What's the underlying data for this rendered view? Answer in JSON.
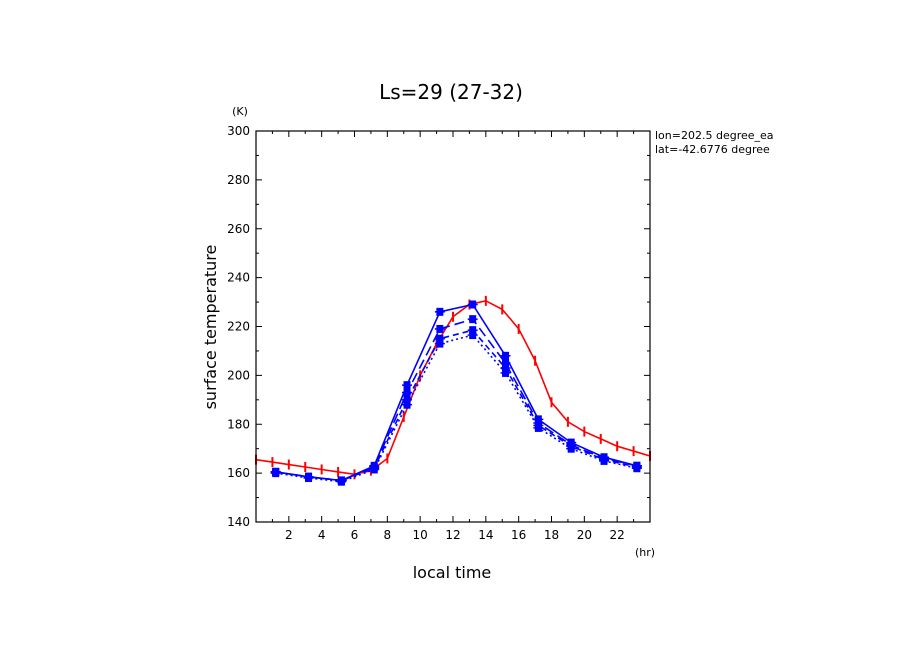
{
  "chart_data": {
    "type": "line",
    "title": "Ls=29 (27-32)",
    "xlabel": "local time",
    "ylabel": "surface temperature",
    "x_unit": "(hr)",
    "y_unit": "(K)",
    "xlim": [
      0,
      24
    ],
    "ylim": [
      140,
      300
    ],
    "x_ticks": [
      2,
      4,
      6,
      8,
      10,
      12,
      14,
      16,
      18,
      20,
      22
    ],
    "y_ticks": [
      140,
      160,
      180,
      200,
      220,
      240,
      260,
      280,
      300
    ],
    "grid": false,
    "annotations": [
      "lon=202.5 degree_ea",
      "lat=-42.6776 degree"
    ],
    "series": [
      {
        "color": "#ff0000",
        "line": "solid",
        "x": [
          0,
          1,
          2,
          3,
          4,
          5,
          6,
          7,
          8,
          9,
          10,
          11,
          12,
          13,
          14,
          15,
          16,
          17,
          18,
          19,
          20,
          21,
          22,
          23,
          24
        ],
        "y": [
          165.5,
          164.5,
          163.5,
          162.5,
          161.5,
          160.5,
          159.5,
          161,
          166,
          183,
          200,
          213,
          224,
          229,
          230.5,
          227,
          219,
          206,
          189,
          181,
          177,
          174,
          171,
          169,
          167
        ]
      },
      {
        "color": "#0000ff",
        "line": "solid",
        "x": [
          1.2,
          3.2,
          5.2,
          7.2,
          9.2,
          11.2,
          13.2,
          15.2,
          17.2,
          19.2,
          21.2,
          23.2
        ],
        "y": [
          160.5,
          158.5,
          157,
          163,
          196,
          226,
          229,
          208,
          182,
          172.5,
          166.5,
          163
        ]
      },
      {
        "color": "#0000ff",
        "line": "long-dash",
        "x": [
          1.2,
          3.2,
          5.2,
          7.2,
          9.2,
          11.2,
          13.2,
          15.2,
          17.2,
          19.2,
          21.2,
          23.2
        ],
        "y": [
          160.5,
          158.5,
          157,
          162.5,
          193,
          219,
          223,
          205,
          180.5,
          171.5,
          166,
          163
        ]
      },
      {
        "color": "#0000ff",
        "line": "dash",
        "x": [
          1.2,
          3.2,
          5.2,
          7.2,
          9.2,
          11.2,
          13.2,
          15.2,
          17.2,
          19.2,
          21.2,
          23.2
        ],
        "y": [
          160.5,
          158.5,
          157,
          162,
          190,
          215,
          218.5,
          203,
          179.5,
          171,
          165.5,
          162.5
        ]
      },
      {
        "color": "#0000ff",
        "line": "dot",
        "x": [
          1.2,
          3.2,
          5.2,
          7.2,
          9.2,
          11.2,
          13.2,
          15.2,
          17.2,
          19.2,
          21.2,
          23.2
        ],
        "y": [
          160,
          158,
          156.5,
          161.5,
          188,
          213,
          216.5,
          201,
          178.5,
          170,
          165,
          162
        ]
      }
    ]
  }
}
